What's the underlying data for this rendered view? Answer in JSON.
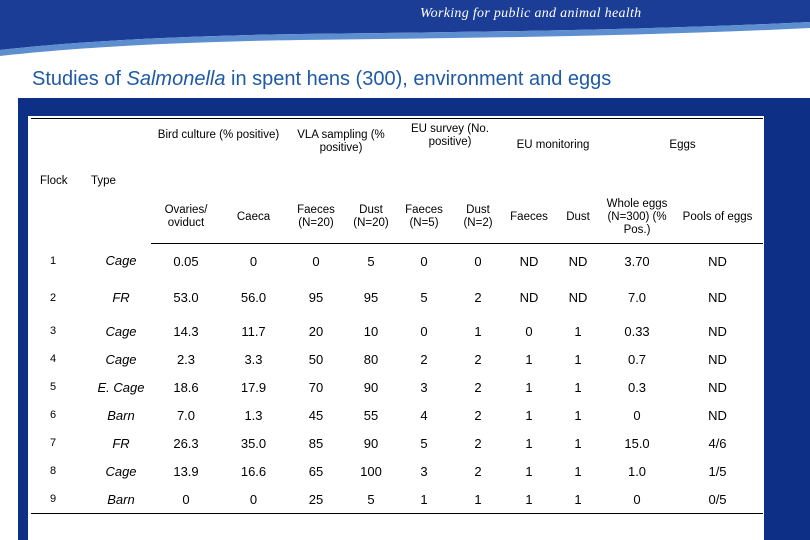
{
  "header": {
    "tagline": "Working for public and animal health"
  },
  "title": {
    "prefix": "Studies of ",
    "italic": "Salmonella",
    "suffix": " in spent hens (300), environment and eggs"
  },
  "colors": {
    "banner": "#1b3d96",
    "panel": "#0e2f86",
    "title": "#1f5aa6"
  },
  "table": {
    "group_headers": {
      "flock": "Flock",
      "type": "Type",
      "bird_culture": "Bird culture (% positive)",
      "vla_sampling": "VLA sampling (% positive)",
      "eu_survey": "EU survey (No. positive)",
      "eu_monitoring": "EU monitoring",
      "eggs": "Eggs"
    },
    "sub_headers": {
      "ovaries": "Ovaries/ oviduct",
      "caeca": "Caeca",
      "vla_faeces": "Faeces (N=20)",
      "vla_dust": "Dust (N=20)",
      "eu_faeces": "Faeces (N=5)",
      "eu_dust": "Dust (N=2)",
      "mon_faeces": "Faeces",
      "mon_dust": "Dust",
      "whole_eggs": "Whole eggs (N=300) (% Pos.)",
      "pools": "Pools of eggs"
    },
    "rows": [
      [
        "1",
        "Cage",
        "0.05",
        "0",
        "0",
        "5",
        "0",
        "0",
        "ND",
        "ND",
        "3.70",
        "ND"
      ],
      [
        "2",
        "FR",
        "53.0",
        "56.0",
        "95",
        "95",
        "5",
        "2",
        "ND",
        "ND",
        "7.0",
        "ND"
      ],
      [
        "3",
        "Cage",
        "14.3",
        "11.7",
        "20",
        "10",
        "0",
        "1",
        "0",
        "1",
        "0.33",
        "ND"
      ],
      [
        "4",
        "Cage",
        "2.3",
        "3.3",
        "50",
        "80",
        "2",
        "2",
        "1",
        "1",
        "0.7",
        "ND"
      ],
      [
        "5",
        "E. Cage",
        "18.6",
        "17.9",
        "70",
        "90",
        "3",
        "2",
        "1",
        "1",
        "0.3",
        "ND"
      ],
      [
        "6",
        "Barn",
        "7.0",
        "1.3",
        "45",
        "55",
        "4",
        "2",
        "1",
        "1",
        "0",
        "ND"
      ],
      [
        "7",
        "FR",
        "26.3",
        "35.0",
        "85",
        "90",
        "5",
        "2",
        "1",
        "1",
        "15.0",
        "4/6"
      ],
      [
        "8",
        "Cage",
        "13.9",
        "16.6",
        "65",
        "100",
        "3",
        "2",
        "1",
        "1",
        "1.0",
        "1/5"
      ],
      [
        "9",
        "Barn",
        "0",
        "0",
        "25",
        "5",
        "1",
        "1",
        "1",
        "1",
        "0",
        "0/5"
      ]
    ]
  }
}
